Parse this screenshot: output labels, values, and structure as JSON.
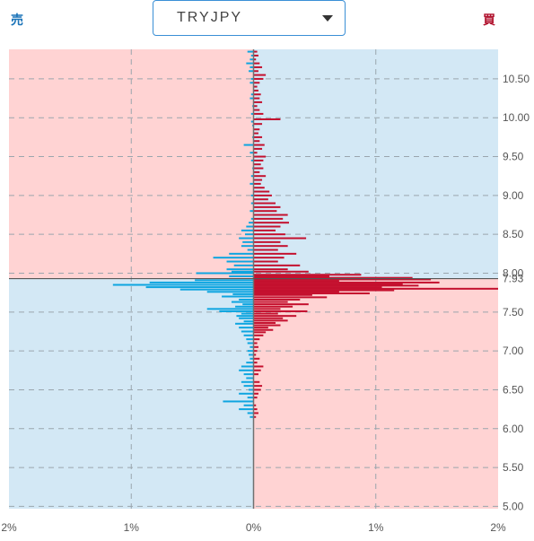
{
  "header": {
    "sell_label": "売",
    "buy_label": "買",
    "pair": "TRYJPY"
  },
  "colors": {
    "sell": "#0ea5e0",
    "buy": "#c4102e",
    "sell_label": "#1a73b8",
    "buy_label": "#b0102c",
    "pink_bg": "#ffd3d3",
    "blue_bg": "#d3e8f5"
  },
  "chart_data": {
    "type": "bar",
    "orientation": "horizontal",
    "current_price_label": "7.93",
    "current_price": 7.93,
    "price_range": [
      4.97,
      10.88
    ],
    "pct_range": [
      -2,
      2
    ],
    "y_ticks": [
      "10.50",
      "10.00",
      "9.50",
      "9.00",
      "8.50",
      "8.00",
      "7.93",
      "7.50",
      "7.00",
      "6.50",
      "6.00",
      "5.50",
      "5.00"
    ],
    "x_ticks": [
      "2%",
      "1%",
      "0%",
      "1%",
      "2%"
    ],
    "sell_series": [
      [
        10.85,
        0.05
      ],
      [
        10.8,
        0.02
      ],
      [
        10.75,
        0.03
      ],
      [
        10.7,
        0.06
      ],
      [
        10.65,
        0.03
      ],
      [
        10.6,
        0.04
      ],
      [
        10.5,
        0.02
      ],
      [
        10.45,
        0.03
      ],
      [
        10.3,
        0.02
      ],
      [
        10.25,
        0.03
      ],
      [
        10.15,
        0.01
      ],
      [
        10.05,
        0.02
      ],
      [
        9.95,
        0.02
      ],
      [
        9.9,
        0.01
      ],
      [
        9.75,
        0.01
      ],
      [
        9.65,
        0.08
      ],
      [
        9.55,
        0.03
      ],
      [
        9.45,
        0.02
      ],
      [
        9.35,
        0.01
      ],
      [
        9.25,
        0.02
      ],
      [
        9.15,
        0.03
      ],
      [
        9.0,
        0.02
      ],
      [
        8.9,
        0.02
      ],
      [
        8.8,
        0.03
      ],
      [
        8.7,
        0.02
      ],
      [
        8.65,
        0.04
      ],
      [
        8.6,
        0.06
      ],
      [
        8.55,
        0.1
      ],
      [
        8.5,
        0.07
      ],
      [
        8.45,
        0.12
      ],
      [
        8.4,
        0.09
      ],
      [
        8.35,
        0.1
      ],
      [
        8.3,
        0.05
      ],
      [
        8.25,
        0.2
      ],
      [
        8.2,
        0.33
      ],
      [
        8.15,
        0.22
      ],
      [
        8.1,
        0.16
      ],
      [
        8.05,
        0.22
      ],
      [
        8.02,
        0.18
      ],
      [
        8.0,
        0.47
      ],
      [
        7.96,
        0.2
      ],
      [
        7.91,
        0.48
      ],
      [
        7.88,
        0.85
      ],
      [
        7.85,
        1.15
      ],
      [
        7.82,
        0.88
      ],
      [
        7.79,
        0.6
      ],
      [
        7.76,
        0.38
      ],
      [
        7.73,
        0.17
      ],
      [
        7.7,
        0.26
      ],
      [
        7.66,
        0.12
      ],
      [
        7.63,
        0.18
      ],
      [
        7.6,
        0.09
      ],
      [
        7.57,
        0.15
      ],
      [
        7.54,
        0.38
      ],
      [
        7.51,
        0.28
      ],
      [
        7.48,
        0.1
      ],
      [
        7.45,
        0.14
      ],
      [
        7.42,
        0.12
      ],
      [
        7.38,
        0.08
      ],
      [
        7.35,
        0.15
      ],
      [
        7.3,
        0.12
      ],
      [
        7.25,
        0.1
      ],
      [
        7.2,
        0.08
      ],
      [
        7.15,
        0.06
      ],
      [
        7.1,
        0.05
      ],
      [
        7.05,
        0.03
      ],
      [
        7.0,
        0.05
      ],
      [
        6.95,
        0.04
      ],
      [
        6.9,
        0.03
      ],
      [
        6.85,
        0.06
      ],
      [
        6.8,
        0.1
      ],
      [
        6.75,
        0.12
      ],
      [
        6.7,
        0.08
      ],
      [
        6.65,
        0.06
      ],
      [
        6.6,
        0.1
      ],
      [
        6.55,
        0.08
      ],
      [
        6.5,
        0.04
      ],
      [
        6.45,
        0.12
      ],
      [
        6.4,
        0.05
      ],
      [
        6.35,
        0.25
      ],
      [
        6.3,
        0.08
      ],
      [
        6.25,
        0.12
      ],
      [
        6.2,
        0.05
      ],
      [
        6.15,
        0.03
      ]
    ],
    "buy_series": [
      [
        10.85,
        0.03
      ],
      [
        10.8,
        0.04
      ],
      [
        10.75,
        0.02
      ],
      [
        10.7,
        0.05
      ],
      [
        10.65,
        0.07
      ],
      [
        10.6,
        0.04
      ],
      [
        10.55,
        0.1
      ],
      [
        10.5,
        0.08
      ],
      [
        10.45,
        0.05
      ],
      [
        10.4,
        0.03
      ],
      [
        10.35,
        0.04
      ],
      [
        10.3,
        0.06
      ],
      [
        10.25,
        0.05
      ],
      [
        10.2,
        0.07
      ],
      [
        10.15,
        0.03
      ],
      [
        10.1,
        0.05
      ],
      [
        10.05,
        0.08
      ],
      [
        9.98,
        0.22
      ],
      [
        9.92,
        0.07
      ],
      [
        9.85,
        0.05
      ],
      [
        9.8,
        0.04
      ],
      [
        9.75,
        0.07
      ],
      [
        9.7,
        0.05
      ],
      [
        9.65,
        0.09
      ],
      [
        9.6,
        0.07
      ],
      [
        9.55,
        0.03
      ],
      [
        9.5,
        0.1
      ],
      [
        9.45,
        0.08
      ],
      [
        9.4,
        0.06
      ],
      [
        9.35,
        0.08
      ],
      [
        9.3,
        0.05
      ],
      [
        9.25,
        0.1
      ],
      [
        9.2,
        0.07
      ],
      [
        9.15,
        0.06
      ],
      [
        9.1,
        0.09
      ],
      [
        9.05,
        0.13
      ],
      [
        9.0,
        0.15
      ],
      [
        8.95,
        0.12
      ],
      [
        8.9,
        0.18
      ],
      [
        8.85,
        0.22
      ],
      [
        8.8,
        0.19
      ],
      [
        8.75,
        0.28
      ],
      [
        8.7,
        0.24
      ],
      [
        8.65,
        0.29
      ],
      [
        8.6,
        0.22
      ],
      [
        8.55,
        0.18
      ],
      [
        8.5,
        0.26
      ],
      [
        8.45,
        0.43
      ],
      [
        8.4,
        0.22
      ],
      [
        8.35,
        0.28
      ],
      [
        8.3,
        0.2
      ],
      [
        8.25,
        0.35
      ],
      [
        8.2,
        0.25
      ],
      [
        8.15,
        0.2
      ],
      [
        8.1,
        0.38
      ],
      [
        8.05,
        0.28
      ],
      [
        8.02,
        0.45
      ],
      [
        7.98,
        0.88
      ],
      [
        7.96,
        0.62
      ],
      [
        7.94,
        1.3
      ],
      [
        7.92,
        1.45
      ],
      [
        7.9,
        0.7
      ],
      [
        7.88,
        1.52
      ],
      [
        7.86,
        1.22
      ],
      [
        7.84,
        1.35
      ],
      [
        7.82,
        1.05
      ],
      [
        7.8,
        2.0
      ],
      [
        7.78,
        1.15
      ],
      [
        7.76,
        0.7
      ],
      [
        7.74,
        0.95
      ],
      [
        7.72,
        0.48
      ],
      [
        7.69,
        0.6
      ],
      [
        7.66,
        0.38
      ],
      [
        7.63,
        0.28
      ],
      [
        7.6,
        0.45
      ],
      [
        7.57,
        0.32
      ],
      [
        7.54,
        0.22
      ],
      [
        7.51,
        0.44
      ],
      [
        7.48,
        0.2
      ],
      [
        7.45,
        0.35
      ],
      [
        7.42,
        0.24
      ],
      [
        7.39,
        0.28
      ],
      [
        7.36,
        0.18
      ],
      [
        7.33,
        0.22
      ],
      [
        7.3,
        0.12
      ],
      [
        7.27,
        0.16
      ],
      [
        7.24,
        0.1
      ],
      [
        7.2,
        0.08
      ],
      [
        7.15,
        0.05
      ],
      [
        7.1,
        0.03
      ],
      [
        7.05,
        0.04
      ],
      [
        7.0,
        0.03
      ],
      [
        6.95,
        0.02
      ],
      [
        6.9,
        0.05
      ],
      [
        6.85,
        0.03
      ],
      [
        6.8,
        0.08
      ],
      [
        6.75,
        0.06
      ],
      [
        6.7,
        0.04
      ],
      [
        6.6,
        0.05
      ],
      [
        6.55,
        0.07
      ],
      [
        6.5,
        0.06
      ],
      [
        6.45,
        0.04
      ],
      [
        6.4,
        0.03
      ],
      [
        6.3,
        0.02
      ],
      [
        6.25,
        0.03
      ],
      [
        6.2,
        0.04
      ],
      [
        6.15,
        0.02
      ]
    ]
  }
}
